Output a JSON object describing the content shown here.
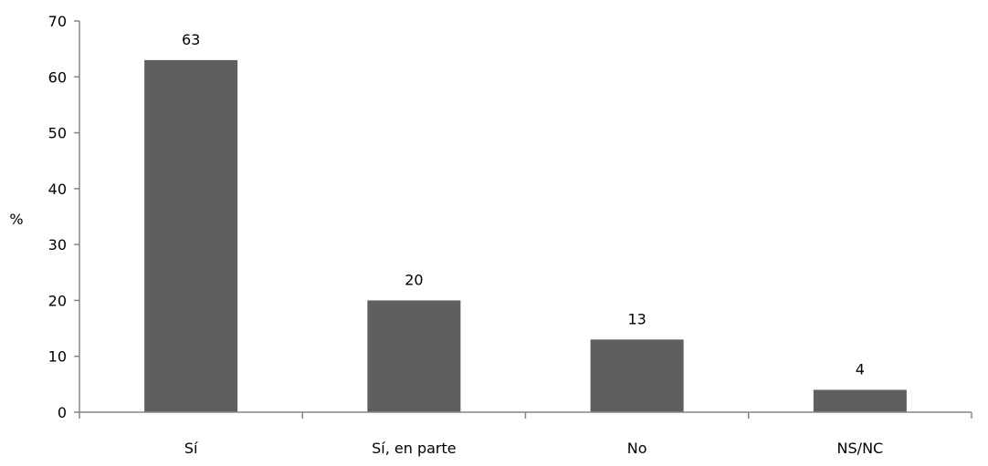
{
  "chart_data": {
    "type": "bar",
    "categories": [
      "Sí",
      "Sí, en parte",
      "No",
      "NS/NC"
    ],
    "values": [
      63,
      20,
      13,
      4
    ],
    "data_labels": [
      "63",
      "20",
      "13",
      "4"
    ],
    "title": "",
    "xlabel": "",
    "ylabel": "%",
    "ylim": [
      0,
      70
    ],
    "yticks": [
      0,
      10,
      20,
      30,
      40,
      50,
      60,
      70
    ],
    "grid": false,
    "legend": "none",
    "bar_color": "#5f5f5f",
    "axis_color": "#868686"
  }
}
